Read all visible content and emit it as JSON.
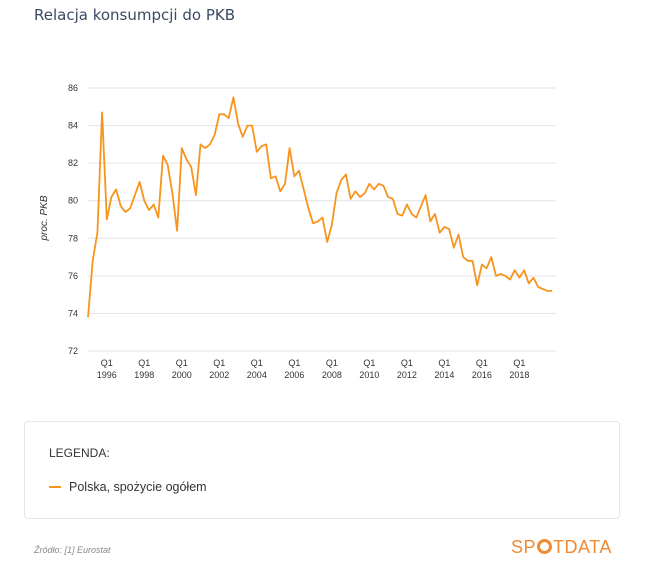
{
  "page": {
    "title": "Relacja konsumpcji do PKB"
  },
  "legend": {
    "title": "LEGENDA:",
    "item": "Polska, spożycie ogółem"
  },
  "source": "Źródło: [1] Eurostat",
  "brand": {
    "pre": "SP",
    "post": "TDATA",
    "color": "#f08a32",
    "dot_color": "#f08a32"
  },
  "colors": {
    "series": "#f7941d",
    "grid": "#e3e3e3",
    "axis_text": "#333333"
  },
  "chart_data": {
    "type": "line",
    "title": "Relacja konsumpcji do PKB",
    "xlabel": "",
    "ylabel": "proc. PKB",
    "xlim": [
      1995.0,
      2019.95
    ],
    "ylim": [
      72,
      86
    ],
    "yticks": [
      72,
      74,
      76,
      78,
      80,
      82,
      84,
      86
    ],
    "xticks": [
      {
        "x": 1996.0,
        "q": "Q1",
        "year": "1996"
      },
      {
        "x": 1998.0,
        "q": "Q1",
        "year": "1998"
      },
      {
        "x": 2000.0,
        "q": "Q1",
        "year": "2000"
      },
      {
        "x": 2002.0,
        "q": "Q1",
        "year": "2002"
      },
      {
        "x": 2004.0,
        "q": "Q1",
        "year": "2004"
      },
      {
        "x": 2006.0,
        "q": "Q1",
        "year": "2006"
      },
      {
        "x": 2008.0,
        "q": "Q1",
        "year": "2008"
      },
      {
        "x": 2010.0,
        "q": "Q1",
        "year": "2010"
      },
      {
        "x": 2012.0,
        "q": "Q1",
        "year": "2012"
      },
      {
        "x": 2014.0,
        "q": "Q1",
        "year": "2014"
      },
      {
        "x": 2016.0,
        "q": "Q1",
        "year": "2016"
      },
      {
        "x": 2018.0,
        "q": "Q1",
        "year": "2018"
      }
    ],
    "grid": true,
    "legend_position": "bottom",
    "series": [
      {
        "name": "Polska, spożycie ogółem",
        "x": [
          1995.0,
          1995.25,
          1995.5,
          1995.75,
          1996.0,
          1996.25,
          1996.5,
          1996.75,
          1997.0,
          1997.25,
          1997.5,
          1997.75,
          1998.0,
          1998.25,
          1998.5,
          1998.75,
          1999.0,
          1999.25,
          1999.5,
          1999.75,
          2000.0,
          2000.25,
          2000.5,
          2000.75,
          2001.0,
          2001.25,
          2001.5,
          2001.75,
          2002.0,
          2002.25,
          2002.5,
          2002.75,
          2003.0,
          2003.25,
          2003.5,
          2003.75,
          2004.0,
          2004.25,
          2004.5,
          2004.75,
          2005.0,
          2005.25,
          2005.5,
          2005.75,
          2006.0,
          2006.25,
          2006.5,
          2006.75,
          2007.0,
          2007.25,
          2007.5,
          2007.75,
          2008.0,
          2008.25,
          2008.5,
          2008.75,
          2009.0,
          2009.25,
          2009.5,
          2009.75,
          2010.0,
          2010.25,
          2010.5,
          2010.75,
          2011.0,
          2011.25,
          2011.5,
          2011.75,
          2012.0,
          2012.25,
          2012.5,
          2012.75,
          2013.0,
          2013.25,
          2013.5,
          2013.75,
          2014.0,
          2014.25,
          2014.5,
          2014.75,
          2015.0,
          2015.25,
          2015.5,
          2015.75,
          2016.0,
          2016.25,
          2016.5,
          2016.75,
          2017.0,
          2017.25,
          2017.5,
          2017.75,
          2018.0,
          2018.25,
          2018.5,
          2018.75,
          2019.0,
          2019.25,
          2019.5,
          2019.75
        ],
        "values": [
          73.8,
          76.8,
          78.3,
          84.7,
          79.0,
          80.2,
          80.6,
          79.7,
          79.4,
          79.6,
          80.3,
          81.0,
          80.0,
          79.5,
          79.8,
          79.1,
          82.4,
          81.9,
          80.4,
          78.4,
          82.8,
          82.2,
          81.8,
          80.3,
          83.0,
          82.8,
          83.0,
          83.5,
          84.6,
          84.6,
          84.4,
          85.5,
          84.1,
          83.4,
          84.0,
          84.0,
          82.6,
          82.9,
          83.0,
          81.2,
          81.3,
          80.5,
          80.9,
          82.8,
          81.3,
          81.6,
          80.6,
          79.6,
          78.8,
          78.9,
          79.1,
          77.8,
          78.7,
          80.4,
          81.1,
          81.4,
          80.1,
          80.5,
          80.2,
          80.4,
          80.9,
          80.6,
          80.9,
          80.8,
          80.2,
          80.1,
          79.3,
          79.2,
          79.8,
          79.3,
          79.1,
          79.7,
          80.3,
          78.9,
          79.3,
          78.3,
          78.6,
          78.5,
          77.5,
          78.2,
          77.0,
          76.8,
          76.8,
          75.5,
          76.6,
          76.4,
          77.0,
          76.0,
          76.1,
          76.0,
          75.8,
          76.3,
          75.9,
          76.3,
          75.6,
          75.9,
          75.4,
          75.3,
          75.2,
          75.2
        ]
      }
    ]
  }
}
